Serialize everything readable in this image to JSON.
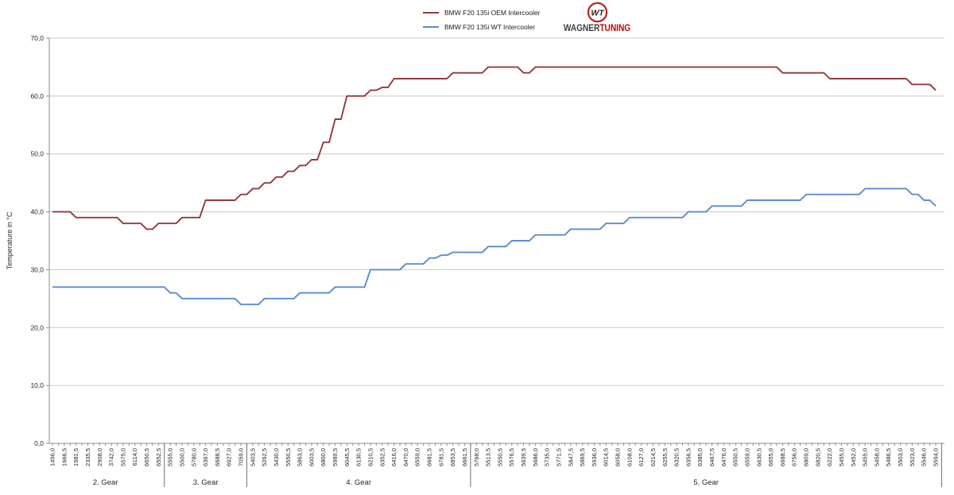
{
  "logo": {
    "monogram": "WT",
    "brand_primary": "WAGNER",
    "brand_accent": "TUNING",
    "accent_color": "#c00000"
  },
  "chart_data": {
    "type": "line",
    "title": "",
    "xlabel": "",
    "ylabel": "Temperature in °C",
    "ylim": [
      0,
      70
    ],
    "ytick_step": 10,
    "ytick_labels": [
      "0,0",
      "10,0",
      "20,0",
      "30,0",
      "40,0",
      "50,0",
      "60,0",
      "70,0"
    ],
    "grid": "horizontal",
    "legend_position": "top-center",
    "gear_sections": [
      {
        "label": "2. Gear",
        "count": 10
      },
      {
        "label": "3. Gear",
        "count": 7
      },
      {
        "label": "4. Gear",
        "count": 19
      },
      {
        "label": "5. Gear",
        "count": 40
      }
    ],
    "x_labels": [
      "1496,0",
      "1666,5",
      "1981,5",
      "2335,5",
      "2908,0",
      "3742,0",
      "5575,0",
      "6114,0",
      "6650,5",
      "6552,5",
      "5555,0",
      "5500,0",
      "5780,0",
      "6367,0",
      "6688,5",
      "6927,0",
      "7059,0",
      "5403,5",
      "5262,5",
      "5430,0",
      "5550,5",
      "5863,0",
      "6003,5",
      "6800,0",
      "5989,5",
      "6045,5",
      "6130,5",
      "6210,5",
      "6352,5",
      "6416,0",
      "6470,0",
      "6559,0",
      "6681,5",
      "6781,5",
      "6853,5",
      "6661,5",
      "5768,0",
      "5513,5",
      "5550,5",
      "5576,5",
      "5639,5",
      "5686,0",
      "5735,0",
      "5771,5",
      "5847,5",
      "5869,5",
      "5936,0",
      "6014,5",
      "6058,0",
      "6108,0",
      "6127,0",
      "6214,5",
      "6255,5",
      "6320,5",
      "6356,5",
      "6385,0",
      "6467,5",
      "6476,0",
      "6550,5",
      "6559,0",
      "6630,5",
      "6655,0",
      "6688,5",
      "6756,0",
      "6809,0",
      "6820,5",
      "6222,0",
      "5455,0",
      "5452,0",
      "5455,0",
      "5458,0",
      "5486,5",
      "5503,0",
      "5523,0",
      "5546,0",
      "5594,0"
    ],
    "series": [
      {
        "name": "BMW F20 135i OEM Intercooler",
        "color": "#94393b",
        "values": [
          40,
          40,
          39,
          39,
          39,
          39,
          38,
          38,
          37,
          38,
          38,
          39,
          39,
          42,
          42,
          42,
          43,
          44,
          45,
          46,
          47,
          48,
          49,
          52,
          56,
          60,
          60,
          61,
          61.5,
          63,
          63,
          63,
          63,
          63,
          64,
          64,
          64,
          65,
          65,
          65,
          64,
          65,
          65,
          65,
          65,
          65,
          65,
          65,
          65,
          65,
          65,
          65,
          65,
          65,
          65,
          65,
          65,
          65,
          65,
          65,
          65,
          65,
          64,
          64,
          64,
          64,
          63,
          63,
          63,
          63,
          63,
          63,
          63,
          62,
          62,
          61
        ]
      },
      {
        "name": "BMW F20 135i WT Intercooler",
        "color": "#5b8bd0",
        "values": [
          27,
          27,
          27,
          27,
          27,
          27,
          27,
          27,
          27,
          27,
          26,
          25,
          25,
          25,
          25,
          25,
          24,
          24,
          25,
          25,
          25,
          26,
          26,
          26,
          27,
          27,
          27,
          30,
          30,
          30,
          31,
          31,
          32,
          32.5,
          33,
          33,
          33,
          34,
          34,
          35,
          35,
          36,
          36,
          36,
          37,
          37,
          37,
          38,
          38,
          39,
          39,
          39,
          39,
          39,
          40,
          40,
          41,
          41,
          41,
          42,
          42,
          42,
          42,
          42,
          43,
          43,
          43,
          43,
          43,
          44,
          44,
          44,
          44,
          43,
          42,
          41
        ]
      }
    ]
  }
}
